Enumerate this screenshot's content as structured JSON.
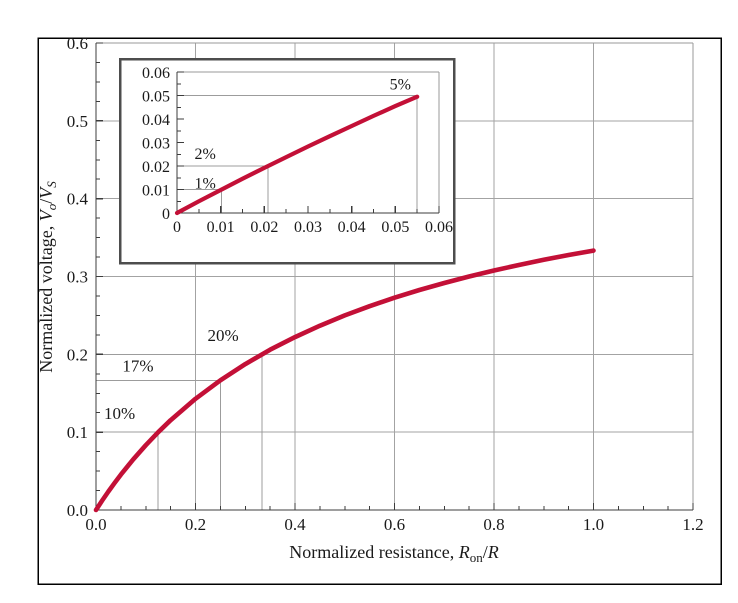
{
  "figure": {
    "description": "Normalized output voltage versus normalized switch on-resistance with magnified inset",
    "colors": {
      "background": "#ffffff",
      "figure_border": "#000000",
      "curve": "#c31037",
      "grid": "#a3a3a3",
      "frame": "#9a9a9a",
      "axis": "#3c3c3c",
      "guide": "#9c9c9c",
      "text": "#1a1a1a",
      "inset_border": "#4d4d4d",
      "inset_background": "#ffffff"
    }
  },
  "chart_data": [
    {
      "id": "main",
      "type": "line",
      "title": "",
      "xlabel": "Normalized resistance, Ron/R",
      "ylabel": "Normalized voltage, Vo/VS",
      "xlabel_parts": [
        {
          "t": "Normalized resistance, ",
          "s": "r"
        },
        {
          "t": "R",
          "s": "i"
        },
        {
          "t": "on",
          "s": "sub"
        },
        {
          "t": "/",
          "s": "r"
        },
        {
          "t": "R",
          "s": "i"
        }
      ],
      "ylabel_parts": [
        {
          "t": "Normalized voltage, ",
          "s": "r"
        },
        {
          "t": "V",
          "s": "i"
        },
        {
          "t": "o",
          "s": "subi"
        },
        {
          "t": "/",
          "s": "r"
        },
        {
          "t": "V",
          "s": "i"
        },
        {
          "t": "S",
          "s": "subi"
        }
      ],
      "xlim": [
        0,
        1.2
      ],
      "ylim": [
        0,
        0.6
      ],
      "x_ticks": [
        0,
        0.2,
        0.4,
        0.6,
        0.8,
        1.0,
        1.2
      ],
      "x_tick_labels": [
        "0.0",
        "0.2",
        "0.4",
        "0.6",
        "0.8",
        "1.0",
        "1.2"
      ],
      "y_ticks": [
        0,
        0.1,
        0.2,
        0.3,
        0.4,
        0.5,
        0.6
      ],
      "y_tick_labels": [
        "0.0",
        "0.1",
        "0.2",
        "0.3",
        "0.4",
        "0.5",
        "0.6"
      ],
      "x_minor_ticks": [
        0.05,
        0.1,
        0.15,
        0.25,
        0.3,
        0.35,
        0.45,
        0.5,
        0.55,
        0.65,
        0.7,
        0.75,
        0.85,
        0.9,
        0.95,
        1.05,
        1.1,
        1.15
      ],
      "y_minor_ticks": [
        0.025,
        0.05,
        0.075,
        0.125,
        0.15,
        0.175,
        0.225,
        0.25,
        0.275,
        0.325,
        0.35,
        0.375,
        0.425,
        0.45,
        0.475,
        0.525,
        0.55,
        0.575
      ],
      "grid_x": [
        0.2,
        0.4,
        0.6,
        0.8,
        1.0
      ],
      "grid_y": [
        0.1,
        0.2,
        0.3,
        0.4,
        0.5
      ],
      "series": [
        {
          "name": "Vo/VS vs Ron/R",
          "x": [
            0,
            0.0125,
            0.025,
            0.0375,
            0.05,
            0.075,
            0.1,
            0.125,
            0.15,
            0.2,
            0.25,
            0.3,
            0.35,
            0.4,
            0.45,
            0.5,
            0.55,
            0.6,
            0.65,
            0.7,
            0.75,
            0.8,
            0.85,
            0.9,
            0.95,
            1.0
          ],
          "y": [
            0,
            0.0122,
            0.0238,
            0.0349,
            0.0455,
            0.0652,
            0.0833,
            0.1,
            0.1154,
            0.1429,
            0.1667,
            0.1875,
            0.2059,
            0.2222,
            0.2368,
            0.25,
            0.2619,
            0.2727,
            0.2826,
            0.2917,
            0.3,
            0.3077,
            0.3148,
            0.3214,
            0.3276,
            0.3333
          ]
        }
      ],
      "guide_lines": [
        {
          "x1": 0,
          "y1": 0.1,
          "x2": 0.125,
          "y2": 0.1
        },
        {
          "x1": 0.125,
          "y1": 0,
          "x2": 0.125,
          "y2": 0.1
        },
        {
          "x1": 0,
          "y1": 0.1667,
          "x2": 0.25,
          "y2": 0.1667
        },
        {
          "x1": 0.25,
          "y1": 0,
          "x2": 0.25,
          "y2": 0.1667
        },
        {
          "x1": 0,
          "y1": 0.2,
          "x2": 0.3333,
          "y2": 0.2
        },
        {
          "x1": 0.3333,
          "y1": 0,
          "x2": 0.3333,
          "y2": 0.2
        }
      ],
      "annotations": [
        {
          "text": "10%",
          "x": 0.016,
          "y": 0.117
        },
        {
          "text": "17%",
          "x": 0.053,
          "y": 0.178
        },
        {
          "text": "20%",
          "x": 0.224,
          "y": 0.217
        }
      ]
    },
    {
      "id": "inset",
      "type": "line",
      "title": "",
      "xlabel": "",
      "ylabel": "",
      "xlabel_parts": [],
      "ylabel_parts": [],
      "xlim": [
        0,
        0.06
      ],
      "ylim": [
        0,
        0.06
      ],
      "x_ticks": [
        0,
        0.01,
        0.02,
        0.03,
        0.04,
        0.05,
        0.06
      ],
      "x_tick_labels": [
        "0",
        "0.01",
        "0.02",
        "0.03",
        "0.04",
        "0.05",
        "0.06"
      ],
      "y_ticks": [
        0,
        0.01,
        0.02,
        0.03,
        0.04,
        0.05,
        0.06
      ],
      "y_tick_labels": [
        "0",
        "0.01",
        "0.02",
        "0.03",
        "0.04",
        "0.05",
        "0.06"
      ],
      "x_minor_ticks": [
        0.005,
        0.015,
        0.025,
        0.035,
        0.045,
        0.055
      ],
      "y_minor_ticks": [
        0.005,
        0.015,
        0.025,
        0.035,
        0.045,
        0.055
      ],
      "grid_x": [],
      "grid_y": [],
      "series": [
        {
          "name": "Vo/VS vs Ron/R (magnified)",
          "x": [
            0,
            0.005,
            0.01,
            0.015,
            0.02,
            0.025,
            0.03,
            0.035,
            0.04,
            0.045,
            0.05,
            0.055
          ],
          "y": [
            0,
            0.005,
            0.0098,
            0.0146,
            0.0192,
            0.0238,
            0.0283,
            0.0327,
            0.037,
            0.0413,
            0.0455,
            0.0495
          ]
        }
      ],
      "guide_lines": [
        {
          "x1": 0,
          "y1": 0.01,
          "x2": 0.0102,
          "y2": 0.01
        },
        {
          "x1": 0.0102,
          "y1": 0,
          "x2": 0.0102,
          "y2": 0.01
        },
        {
          "x1": 0,
          "y1": 0.02,
          "x2": 0.0208,
          "y2": 0.02
        },
        {
          "x1": 0.0208,
          "y1": 0,
          "x2": 0.0208,
          "y2": 0.02
        },
        {
          "x1": 0,
          "y1": 0.05,
          "x2": 0.055,
          "y2": 0.05
        },
        {
          "x1": 0.055,
          "y1": 0,
          "x2": 0.055,
          "y2": 0.05
        }
      ],
      "annotations": [
        {
          "text": "1%",
          "x": 0.004,
          "y": 0.0105
        },
        {
          "text": "2%",
          "x": 0.004,
          "y": 0.023
        },
        {
          "text": "5%",
          "x": 0.0487,
          "y": 0.0525
        }
      ]
    }
  ]
}
